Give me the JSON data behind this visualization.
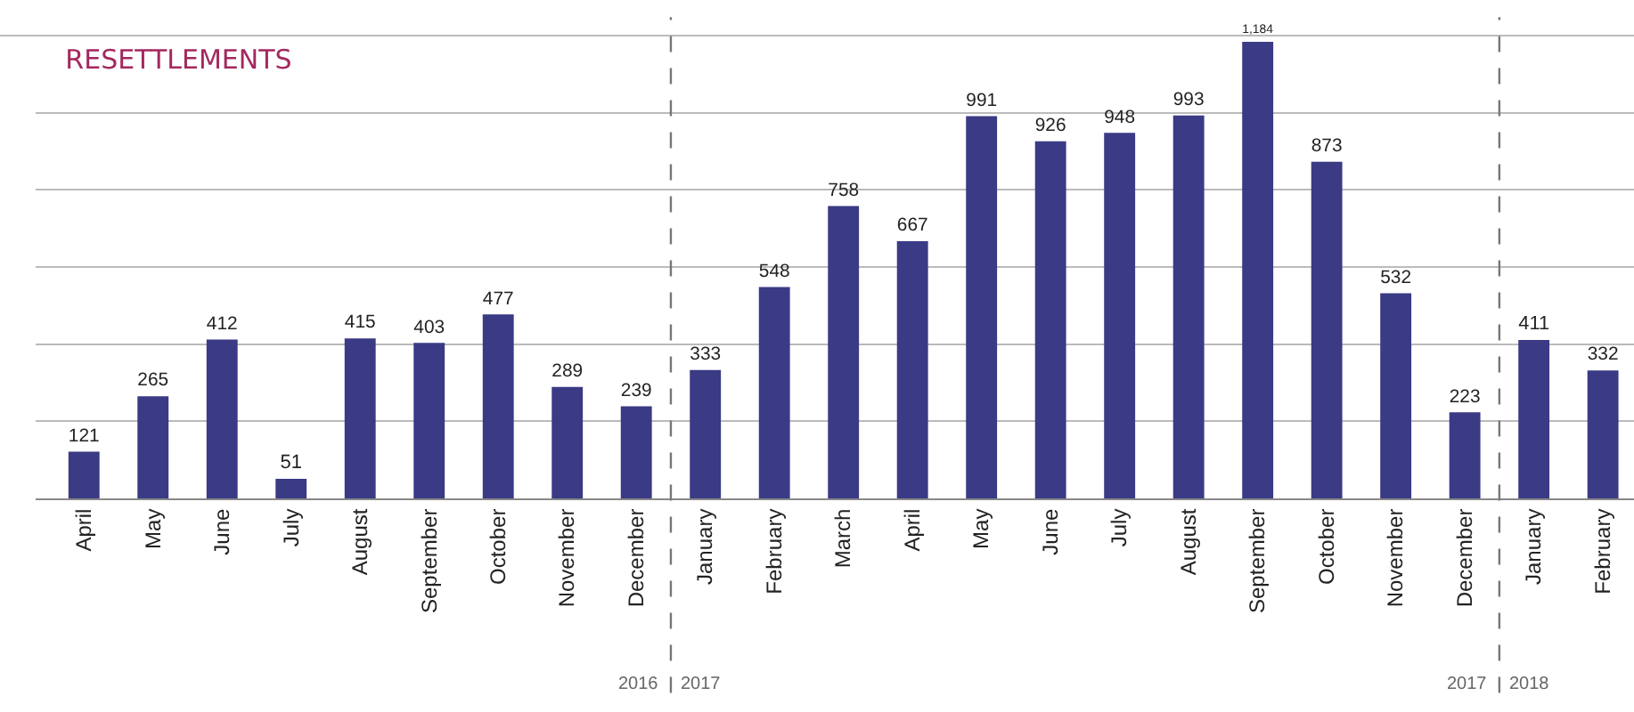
{
  "chart_data": {
    "type": "bar",
    "title": "RESETTLEMENTS",
    "categories": [
      "April",
      "May",
      "June",
      "July",
      "August",
      "September",
      "October",
      "November",
      "December",
      "January",
      "February",
      "March",
      "April",
      "May",
      "June",
      "July",
      "August",
      "September",
      "October",
      "November",
      "December",
      "January",
      "February"
    ],
    "values": [
      121,
      265,
      412,
      51,
      415,
      403,
      477,
      289,
      239,
      333,
      548,
      758,
      667,
      991,
      926,
      948,
      993,
      1184,
      873,
      532,
      223,
      411,
      332
    ],
    "value_labels": [
      "121",
      "265",
      "412",
      "51",
      "415",
      "403",
      "477",
      "289",
      "239",
      "333",
      "548",
      "758",
      "667",
      "991",
      "926",
      "948",
      "993",
      "1,184",
      "873",
      "532",
      "223",
      "411",
      "332"
    ],
    "color": "#3a3a85",
    "ylim": [
      0,
      1200
    ],
    "yticks": [
      {
        "value": 0,
        "label": null
      },
      {
        "value": 200,
        "label": null
      },
      {
        "value": 400,
        "label": null
      },
      {
        "value": 600,
        "label": null
      },
      {
        "value": 800,
        "label": null
      },
      {
        "value": 1000,
        "label": null
      }
    ],
    "grid": "y",
    "tick_labels": "x",
    "annotations": [
      "2016",
      "2017",
      "2017",
      "2018"
    ]
  }
}
